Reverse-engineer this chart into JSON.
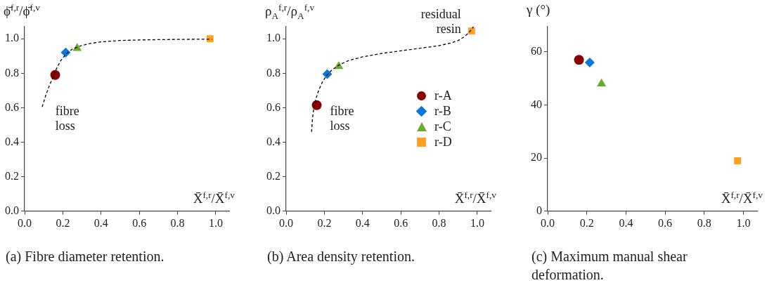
{
  "chart_data": [
    {
      "type": "scatter",
      "title": "(a) Fibre diameter retention.",
      "xlabel": "X̄$^{f,r}$/X̄$^{f,v}$",
      "ylabel": "ϕ̄$^{f,r}$/ϕ̄$^{f,v}$",
      "xlim": [
        0,
        1.07
      ],
      "ylim": [
        0,
        1.07
      ],
      "xticks": [
        {
          "value": 0,
          "label": "0.0"
        },
        {
          "value": 0.2,
          "label": "0.2"
        },
        {
          "value": 0.4,
          "label": "0.4"
        },
        {
          "value": 0.6,
          "label": "0.6"
        },
        {
          "value": 0.8,
          "label": "0.8"
        },
        {
          "value": 1,
          "label": "1.0"
        }
      ],
      "yticks": [
        {
          "value": 0,
          "label": "0.0"
        },
        {
          "value": 0.2,
          "label": "0.2"
        },
        {
          "value": 0.4,
          "label": "0.4"
        },
        {
          "value": 0.6,
          "label": "0.6"
        },
        {
          "value": 0.8,
          "label": "0.8"
        },
        {
          "value": 1,
          "label": "1.0"
        }
      ],
      "grid": false,
      "legend": false,
      "series": [
        {
          "type": "line",
          "color": "#000000",
          "marker": "none",
          "line_style": "dashed",
          "x": [
            0.092,
            0.11,
            0.13,
            0.15,
            0.17,
            0.19,
            0.22,
            0.25,
            0.29,
            0.34,
            0.4,
            0.5,
            0.6,
            0.7,
            0.8,
            0.9,
            0.98
          ],
          "values": [
            0.605,
            0.67,
            0.73,
            0.78,
            0.835,
            0.875,
            0.915,
            0.94,
            0.958,
            0.972,
            0.982,
            0.99,
            0.993,
            0.995,
            0.996,
            0.997,
            0.997
          ]
        },
        {
          "color": "#8b0000",
          "marker": "circle",
          "x": [
            0.16
          ],
          "values": [
            0.79
          ]
        },
        {
          "color": "#0a78d8",
          "marker": "diamond",
          "x": [
            0.215
          ],
          "values": [
            0.92
          ]
        },
        {
          "color": "#6aab2e",
          "marker": "triangle",
          "x": [
            0.275
          ],
          "values": [
            0.945
          ]
        },
        {
          "color": "#ffa020",
          "marker": "square",
          "x": [
            0.97
          ],
          "values": [
            1.0
          ]
        }
      ],
      "annotations": [
        "fibre loss"
      ]
    },
    {
      "type": "scatter",
      "title": "(b) Area density retention.",
      "xlabel": "X̄$^{f,r}$/X̄$^{f,v}$",
      "ylabel": "ρ$_{A}$$^{f,r}$/ρ$_{A}$$^{f,v}$",
      "xlim": [
        0,
        1.07
      ],
      "ylim": [
        0,
        1.07
      ],
      "xticks": [
        {
          "value": 0,
          "label": "0.0"
        },
        {
          "value": 0.2,
          "label": "0.2"
        },
        {
          "value": 0.4,
          "label": "0.4"
        },
        {
          "value": 0.6,
          "label": "0.6"
        },
        {
          "value": 0.8,
          "label": "0.8"
        },
        {
          "value": 1,
          "label": "1.0"
        }
      ],
      "yticks": [
        {
          "value": 0,
          "label": "0.0"
        },
        {
          "value": 0.2,
          "label": "0.2"
        },
        {
          "value": 0.4,
          "label": "0.4"
        },
        {
          "value": 0.6,
          "label": "0.6"
        },
        {
          "value": 0.8,
          "label": "0.8"
        },
        {
          "value": 1,
          "label": "1.0"
        }
      ],
      "grid": false,
      "legend": "right",
      "series": [
        {
          "type": "line",
          "color": "#000000",
          "marker": "none",
          "line_style": "dashed",
          "x": [
            0.133,
            0.138,
            0.145,
            0.155,
            0.17,
            0.19,
            0.21,
            0.24,
            0.28,
            0.33,
            0.4,
            0.5,
            0.6,
            0.7,
            0.8,
            0.86,
            0.9,
            0.93,
            0.955,
            0.97,
            0.98
          ],
          "values": [
            0.46,
            0.54,
            0.6,
            0.65,
            0.7,
            0.75,
            0.785,
            0.82,
            0.85,
            0.875,
            0.895,
            0.915,
            0.93,
            0.945,
            0.96,
            0.975,
            0.99,
            1.01,
            1.035,
            1.055,
            1.07
          ]
        },
        {
          "name": "r-A",
          "color": "#8b0000",
          "marker": "circle",
          "x": [
            0.16
          ],
          "values": [
            0.615
          ]
        },
        {
          "name": "r-B",
          "color": "#0a78d8",
          "marker": "diamond",
          "x": [
            0.215
          ],
          "values": [
            0.795
          ]
        },
        {
          "name": "r-C",
          "color": "#6aab2e",
          "marker": "triangle",
          "x": [
            0.275
          ],
          "values": [
            0.84
          ]
        },
        {
          "name": "r-D",
          "color": "#ffa020",
          "marker": "square",
          "x": [
            0.97
          ],
          "values": [
            1.045
          ]
        }
      ],
      "annotations": [
        "fibre loss",
        "residual resin"
      ]
    },
    {
      "type": "scatter",
      "title": "(c) Maximum manual shear deformation.",
      "xlabel": "X̄$^{f,r}$/X̄$^{f,v}$",
      "ylabel": "γ (°)",
      "xlim": [
        0,
        1.07
      ],
      "ylim": [
        0,
        69.5
      ],
      "xticks": [
        {
          "value": 0,
          "label": "0.0"
        },
        {
          "value": 0.2,
          "label": "0.2"
        },
        {
          "value": 0.4,
          "label": "0.4"
        },
        {
          "value": 0.6,
          "label": "0.6"
        },
        {
          "value": 0.8,
          "label": "0.8"
        },
        {
          "value": 1,
          "label": "1.0"
        }
      ],
      "yticks": [
        0,
        20,
        40,
        60
      ],
      "grid": false,
      "legend": false,
      "series": [
        {
          "color": "#8b0000",
          "marker": "circle",
          "x": [
            0.16
          ],
          "values": [
            57
          ]
        },
        {
          "color": "#0a78d8",
          "marker": "diamond",
          "x": [
            0.215
          ],
          "values": [
            56
          ]
        },
        {
          "color": "#6aab2e",
          "marker": "triangle",
          "x": [
            0.275
          ],
          "values": [
            48
          ]
        },
        {
          "color": "#ffa020",
          "marker": "square",
          "x": [
            0.97
          ],
          "values": [
            19
          ]
        }
      ]
    }
  ]
}
